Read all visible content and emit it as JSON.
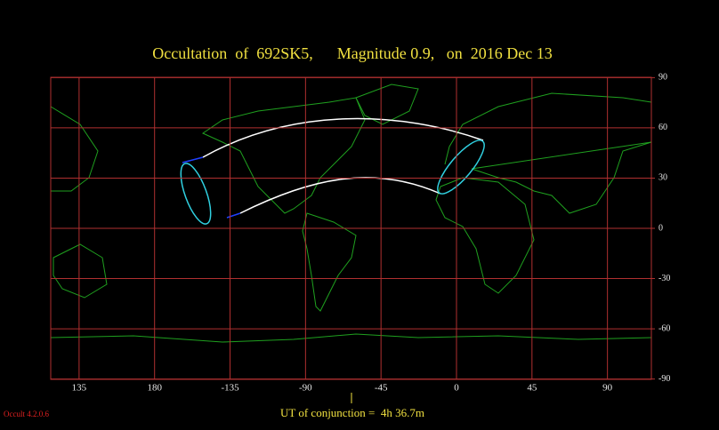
{
  "title": "Occultation  of  692SK5,      Magnitude 0.9,   on  2016 Dec 13",
  "lon_ticks": [
    135,
    180,
    -135,
    -90,
    -45,
    0,
    45,
    90
  ],
  "lat_ticks": [
    90,
    60,
    30,
    0,
    -30,
    -60,
    -90
  ],
  "conjunction_label": "UT of conjunction =  4h 36.7m",
  "version": "Occult 4.2.0.6"
}
